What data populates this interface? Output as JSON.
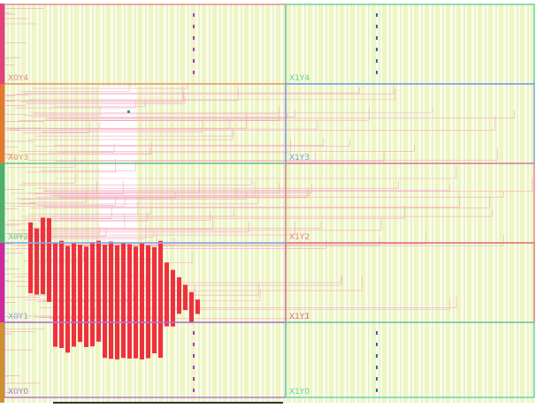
{
  "regions": [
    {
      "label": "X0Y4"
    },
    {
      "label": "X1Y4"
    },
    {
      "label": "X0Y3"
    },
    {
      "label": "X1Y3"
    },
    {
      "label": "X0Y2"
    },
    {
      "label": "X1Y2"
    },
    {
      "label": "X0Y1"
    },
    {
      "label": "X1Y1"
    },
    {
      "label": "X0Y0"
    },
    {
      "label": "X1Y0"
    }
  ]
}
